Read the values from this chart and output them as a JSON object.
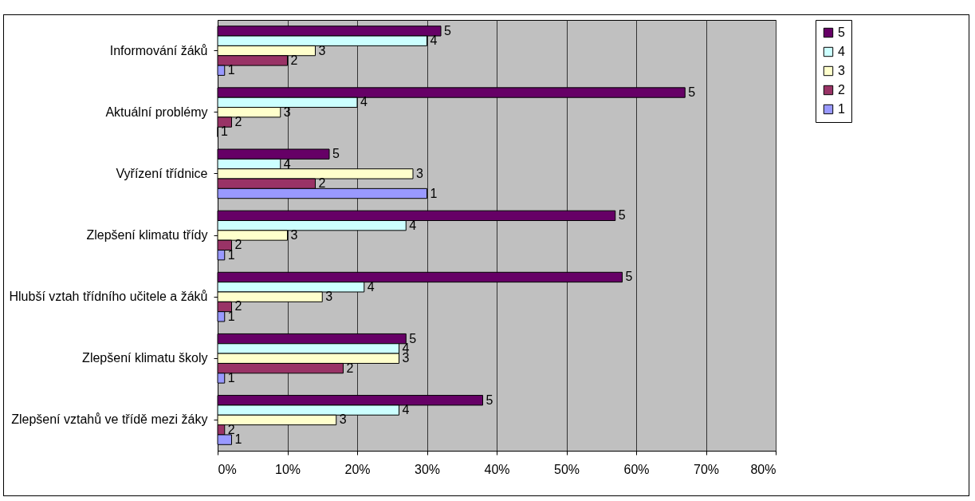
{
  "chart_data": {
    "type": "bar",
    "orientation": "horizontal",
    "categories": [
      "Informování žáků",
      "Aktuální problémy",
      "Vyřízení třídnice",
      "Zlepšení klimatu třídy",
      "Hlubší vztah třídního učitele a žáků",
      "Zlepšení klimatu školy",
      "Zlepšení vztahů ve třídě mezi žáky"
    ],
    "series": [
      {
        "name": "5",
        "color": "#660066",
        "values": [
          32,
          67,
          16,
          57,
          58,
          27,
          38
        ]
      },
      {
        "name": "4",
        "color": "#ccffff",
        "values": [
          30,
          20,
          9,
          27,
          21,
          26,
          26
        ]
      },
      {
        "name": "3",
        "color": "#ffffcc",
        "values": [
          14,
          9,
          28,
          10,
          15,
          26,
          17
        ]
      },
      {
        "name": "2",
        "color": "#993366",
        "values": [
          10,
          2,
          14,
          2,
          2,
          18,
          1
        ]
      },
      {
        "name": "1",
        "color": "#9999ff",
        "values": [
          1,
          0,
          30,
          1,
          1,
          1,
          2
        ]
      }
    ],
    "xlim": [
      0,
      80
    ],
    "xticks": [
      {
        "value": 0,
        "label": "0%"
      },
      {
        "value": 10,
        "label": "10%"
      },
      {
        "value": 20,
        "label": "20%"
      },
      {
        "value": 30,
        "label": "30%"
      },
      {
        "value": 40,
        "label": "40%"
      },
      {
        "value": 50,
        "label": "50%"
      },
      {
        "value": 60,
        "label": "60%"
      },
      {
        "value": 70,
        "label": "70%"
      },
      {
        "value": 80,
        "label": "80%"
      }
    ],
    "grid": "x",
    "legend": "right"
  }
}
